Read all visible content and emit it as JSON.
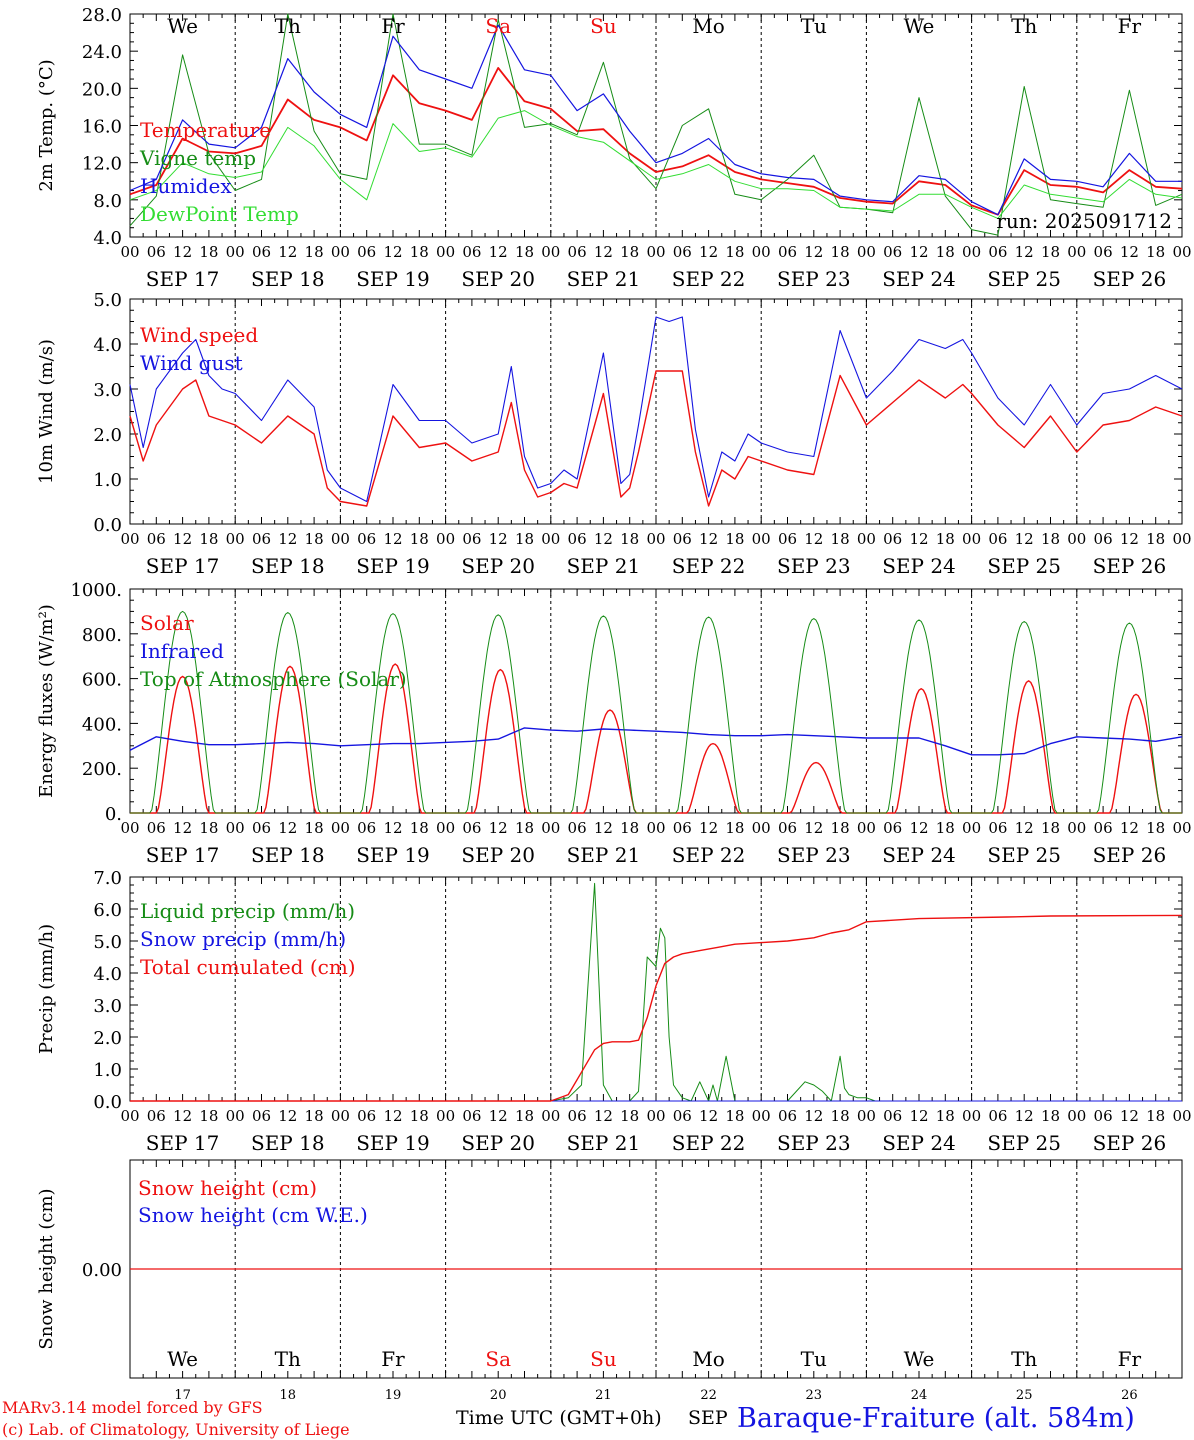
{
  "colors": {
    "red": "#ee1111",
    "darkgreen": "#168c16",
    "blue": "#1515e0",
    "lightgreen": "#33dd33",
    "black": "#000000"
  },
  "day_names": [
    "We",
    "Th",
    "Fr",
    "Sa",
    "Su",
    "Mo",
    "Tu",
    "We",
    "Th",
    "Fr"
  ],
  "day_name_colors": [
    "black",
    "black",
    "black",
    "red",
    "red",
    "black",
    "black",
    "black",
    "black",
    "black"
  ],
  "date_labels": [
    "SEP 17",
    "SEP 18",
    "SEP 19",
    "SEP 20",
    "SEP 21",
    "SEP 22",
    "SEP 23",
    "SEP 24",
    "SEP 25",
    "SEP 26"
  ],
  "day_numbers": [
    "17",
    "18",
    "19",
    "20",
    "21",
    "22",
    "23",
    "24",
    "25",
    "26"
  ],
  "hour_labels": [
    "00",
    "06",
    "12",
    "18"
  ],
  "hour_end_label": "00",
  "footer": {
    "credit_line1": "MARv3.14 model forced by GFS",
    "credit_line2": "(c) Lab. of Climatology, University of Liege",
    "xlabel": "Time UTC (GMT+0h)",
    "month": "SEP",
    "station": "Baraque-Fraiture (alt. 584m)"
  },
  "chart_data": [
    {
      "type": "line",
      "ylabel": "2m Temp. (°C)",
      "ylim": [
        4.0,
        28.0
      ],
      "yticks": [
        "4.0",
        "8.0",
        "12.0",
        "16.0",
        "20.0",
        "24.0",
        "28.0"
      ],
      "annotation": "run: 2025091712",
      "show_day_names": true,
      "x_unit": "hours since SEP 17 00 UTC",
      "series": [
        {
          "name": "Temperature",
          "color": "red",
          "width": 1.8,
          "x": [
            0,
            6,
            12,
            18,
            24,
            30,
            36,
            42,
            48,
            54,
            60,
            66,
            72,
            78,
            84,
            90,
            96,
            102,
            108,
            114,
            120,
            126,
            132,
            138,
            144,
            150,
            156,
            162,
            168,
            174,
            180,
            186,
            192,
            198,
            204,
            210,
            216,
            222,
            228,
            234,
            240
          ],
          "y": [
            8.6,
            9.6,
            14.6,
            13.2,
            13.0,
            13.8,
            18.8,
            16.6,
            15.8,
            14.4,
            21.4,
            18.4,
            17.6,
            16.6,
            22.2,
            18.6,
            17.8,
            15.4,
            15.6,
            13.0,
            11.0,
            11.6,
            12.8,
            11.0,
            10.2,
            9.8,
            9.4,
            8.2,
            7.8,
            7.6,
            10.0,
            9.6,
            7.4,
            6.4,
            11.2,
            9.6,
            9.4,
            8.8,
            11.2,
            9.4,
            9.2
          ]
        },
        {
          "name": "Vigne temp",
          "color": "darkgreen",
          "width": 1.0,
          "x": [
            0,
            6,
            12,
            18,
            24,
            30,
            36,
            42,
            48,
            54,
            60,
            66,
            72,
            78,
            84,
            90,
            96,
            102,
            108,
            114,
            120,
            126,
            132,
            138,
            144,
            150,
            156,
            162,
            168,
            174,
            180,
            186,
            192,
            198,
            204,
            210,
            216,
            222,
            228,
            234,
            240
          ],
          "y": [
            5.2,
            8.4,
            23.6,
            13.0,
            9.0,
            10.2,
            28.0,
            15.4,
            10.8,
            10.2,
            28.0,
            14.0,
            14.0,
            12.8,
            27.4,
            15.8,
            16.2,
            15.0,
            22.8,
            12.4,
            9.2,
            16.0,
            17.8,
            8.6,
            8.0,
            10.2,
            12.8,
            7.2,
            7.0,
            6.6,
            19.0,
            8.4,
            4.8,
            4.2,
            20.2,
            8.0,
            7.6,
            7.2,
            19.8,
            7.4,
            8.6
          ]
        },
        {
          "name": "Humidex",
          "color": "blue",
          "width": 1.2,
          "x": [
            0,
            6,
            12,
            18,
            24,
            30,
            36,
            42,
            48,
            54,
            60,
            66,
            72,
            78,
            84,
            90,
            96,
            102,
            108,
            114,
            120,
            126,
            132,
            138,
            144,
            150,
            156,
            162,
            168,
            174,
            180,
            186,
            192,
            198,
            204,
            210,
            216,
            222,
            228,
            234,
            240
          ],
          "y": [
            9.0,
            10.2,
            16.6,
            14.0,
            13.6,
            15.8,
            23.2,
            19.6,
            17.2,
            15.8,
            25.6,
            22.0,
            21.0,
            20.0,
            26.8,
            22.0,
            21.4,
            17.6,
            19.4,
            15.4,
            12.0,
            13.0,
            14.6,
            11.8,
            10.8,
            10.4,
            10.2,
            8.4,
            8.0,
            7.8,
            10.6,
            10.2,
            7.8,
            6.4,
            12.4,
            10.2,
            10.0,
            9.4,
            13.0,
            10.0,
            10.0
          ]
        },
        {
          "name": "DewPoint Temp",
          "color": "lightgreen",
          "width": 1.0,
          "x": [
            0,
            6,
            12,
            18,
            24,
            30,
            36,
            42,
            48,
            54,
            60,
            66,
            72,
            78,
            84,
            90,
            96,
            102,
            108,
            114,
            120,
            126,
            132,
            138,
            144,
            150,
            156,
            162,
            168,
            174,
            180,
            186,
            192,
            198,
            204,
            210,
            216,
            222,
            228,
            234,
            240
          ],
          "y": [
            8.0,
            9.0,
            12.0,
            10.8,
            10.4,
            11.0,
            15.8,
            13.8,
            10.2,
            8.0,
            16.2,
            13.2,
            13.6,
            12.6,
            16.8,
            17.6,
            16.0,
            14.8,
            14.2,
            12.2,
            10.2,
            10.8,
            11.8,
            10.0,
            9.2,
            9.2,
            9.0,
            7.2,
            7.0,
            6.8,
            8.6,
            8.6,
            7.2,
            6.0,
            9.6,
            8.6,
            8.2,
            7.8,
            10.2,
            8.6,
            8.2
          ]
        }
      ]
    },
    {
      "type": "line",
      "ylabel": "10m Wind (m/s)",
      "ylim": [
        0.0,
        5.0
      ],
      "yticks": [
        "0.0",
        "1.0",
        "2.0",
        "3.0",
        "4.0",
        "5.0"
      ],
      "series": [
        {
          "name": "Wind speed",
          "color": "red",
          "width": 1.4,
          "x": [
            0,
            3,
            6,
            12,
            15,
            18,
            21,
            24,
            30,
            36,
            42,
            45,
            48,
            54,
            60,
            66,
            72,
            78,
            84,
            87,
            90,
            93,
            96,
            99,
            102,
            108,
            112,
            114,
            116,
            120,
            123,
            126,
            129,
            132,
            135,
            138,
            141,
            144,
            150,
            156,
            162,
            168,
            174,
            180,
            186,
            190,
            192,
            198,
            204,
            210,
            216,
            222,
            228,
            234,
            240
          ],
          "y": [
            2.4,
            1.4,
            2.2,
            3.0,
            3.2,
            2.4,
            2.3,
            2.2,
            1.8,
            2.4,
            2.0,
            0.8,
            0.5,
            0.4,
            2.4,
            1.7,
            1.8,
            1.4,
            1.6,
            2.7,
            1.2,
            0.6,
            0.7,
            0.9,
            0.8,
            2.9,
            0.6,
            0.8,
            1.6,
            3.4,
            3.4,
            3.4,
            1.6,
            0.4,
            1.2,
            1.0,
            1.5,
            1.4,
            1.2,
            1.1,
            3.3,
            2.2,
            2.7,
            3.2,
            2.8,
            3.1,
            2.9,
            2.2,
            1.7,
            2.4,
            1.6,
            2.2,
            2.3,
            2.6,
            2.4
          ]
        },
        {
          "name": "Wind gust",
          "color": "blue",
          "width": 1.1,
          "x": [
            0,
            3,
            6,
            12,
            15,
            18,
            21,
            24,
            30,
            36,
            42,
            45,
            48,
            54,
            60,
            66,
            72,
            78,
            84,
            87,
            90,
            93,
            96,
            99,
            102,
            108,
            112,
            114,
            116,
            120,
            123,
            126,
            129,
            132,
            135,
            138,
            141,
            144,
            150,
            156,
            162,
            168,
            174,
            180,
            186,
            190,
            192,
            198,
            204,
            210,
            216,
            222,
            228,
            234,
            240
          ],
          "y": [
            3.1,
            1.7,
            3.0,
            3.8,
            4.1,
            3.3,
            3.0,
            2.9,
            2.3,
            3.2,
            2.6,
            1.2,
            0.8,
            0.5,
            3.1,
            2.3,
            2.3,
            1.8,
            2.0,
            3.5,
            1.5,
            0.8,
            0.9,
            1.2,
            1.0,
            3.8,
            0.9,
            1.1,
            2.2,
            4.6,
            4.5,
            4.6,
            2.1,
            0.6,
            1.6,
            1.4,
            2.0,
            1.8,
            1.6,
            1.5,
            4.3,
            2.8,
            3.4,
            4.1,
            3.9,
            4.1,
            3.8,
            2.8,
            2.2,
            3.1,
            2.2,
            2.9,
            3.0,
            3.3,
            3.0
          ]
        }
      ]
    },
    {
      "type": "line",
      "ylabel": "Energy fluxes (W/m²)",
      "ylim": [
        0,
        1000
      ],
      "yticks": [
        "0.",
        "200.",
        "400.",
        "600.",
        "800.",
        "1000."
      ],
      "series": [
        {
          "name": "Solar",
          "color": "red",
          "width": 1.4,
          "peak_hours": [
            12.0,
            36.5,
            60.5,
            84.5,
            109.5,
            133.0,
            156.5,
            180.5,
            205.0,
            229.5
          ],
          "peak_values": [
            610,
            655,
            665,
            640,
            460,
            310,
            225,
            555,
            590,
            530
          ]
        },
        {
          "name": "Infrared",
          "color": "blue",
          "width": 1.4,
          "x": [
            0,
            6,
            12,
            18,
            24,
            30,
            36,
            42,
            48,
            54,
            60,
            66,
            72,
            78,
            84,
            90,
            96,
            102,
            108,
            114,
            120,
            126,
            132,
            138,
            144,
            150,
            156,
            162,
            168,
            174,
            180,
            186,
            192,
            198,
            204,
            210,
            216,
            222,
            228,
            234,
            240
          ],
          "y": [
            280,
            340,
            320,
            305,
            305,
            310,
            315,
            310,
            300,
            305,
            310,
            310,
            315,
            320,
            330,
            380,
            370,
            365,
            375,
            370,
            365,
            360,
            350,
            345,
            345,
            350,
            345,
            340,
            335,
            335,
            335,
            300,
            260,
            260,
            265,
            310,
            340,
            335,
            330,
            320,
            340
          ]
        },
        {
          "name": "Top of Atmosphere (Solar)",
          "color": "darkgreen",
          "width": 1.0,
          "peak_hours": [
            12.0,
            36.0,
            60.0,
            84.0,
            108.0,
            132.0,
            156.0,
            180.0,
            204.0,
            228.0
          ],
          "peak_values": [
            900,
            895,
            890,
            885,
            880,
            875,
            868,
            862,
            855,
            848
          ]
        }
      ]
    },
    {
      "type": "line",
      "ylabel": "Precip (mm/h)",
      "ylim": [
        0.0,
        7.0
      ],
      "yticks": [
        "0.0",
        "1.0",
        "2.0",
        "3.0",
        "4.0",
        "5.0",
        "6.0",
        "7.0"
      ],
      "series": [
        {
          "name": "Liquid precip (mm/h)",
          "color": "darkgreen",
          "width": 1.0,
          "x": [
            0,
            96,
            100,
            103,
            106,
            108,
            110,
            112,
            114,
            116,
            118,
            120,
            121,
            122,
            123,
            124,
            126,
            128,
            130,
            132,
            133,
            134,
            136,
            138,
            139,
            140,
            142,
            144,
            150,
            152,
            154,
            156,
            158,
            160,
            162,
            163,
            164,
            166,
            168,
            170,
            172,
            240
          ],
          "y": [
            0.0,
            0.0,
            0.1,
            0.5,
            6.8,
            0.5,
            0.0,
            0.0,
            0.0,
            0.3,
            4.5,
            4.2,
            5.4,
            5.1,
            2.0,
            0.5,
            0.1,
            0.0,
            0.6,
            0.0,
            0.5,
            0.0,
            1.4,
            0.0,
            0.0,
            0.0,
            0.0,
            0.0,
            0.0,
            0.3,
            0.6,
            0.5,
            0.3,
            0.0,
            1.4,
            0.4,
            0.2,
            0.1,
            0.1,
            0.0,
            0.0,
            0.0
          ]
        },
        {
          "name": "Snow precip (mm/h)",
          "color": "blue",
          "width": 1.0,
          "x": [
            0,
            240
          ],
          "y": [
            0.0,
            0.0
          ]
        },
        {
          "name": "Total cumulated (cm)",
          "color": "red",
          "width": 1.4,
          "x": [
            0,
            96,
            100,
            103,
            106,
            108,
            110,
            112,
            114,
            116,
            118,
            120,
            122,
            124,
            126,
            130,
            134,
            138,
            144,
            150,
            156,
            160,
            164,
            168,
            180,
            200,
            210,
            240
          ],
          "y": [
            0.0,
            0.0,
            0.2,
            0.9,
            1.6,
            1.8,
            1.85,
            1.85,
            1.85,
            1.9,
            2.6,
            3.6,
            4.3,
            4.5,
            4.6,
            4.7,
            4.8,
            4.9,
            4.95,
            5.0,
            5.1,
            5.25,
            5.35,
            5.6,
            5.7,
            5.75,
            5.78,
            5.8
          ]
        }
      ]
    },
    {
      "type": "line",
      "ylabel": "Snow height (cm)",
      "ylim": [
        -1,
        1
      ],
      "yticks": [
        "0.00"
      ],
      "series": [
        {
          "name": "Snow height (cm)",
          "color": "red",
          "width": 1.2,
          "x": [
            0,
            240
          ],
          "y": [
            0.0,
            0.0
          ]
        },
        {
          "name": "Snow height (cm W.E.)",
          "color": "blue",
          "width": 0,
          "x": [],
          "y": []
        }
      ]
    }
  ]
}
